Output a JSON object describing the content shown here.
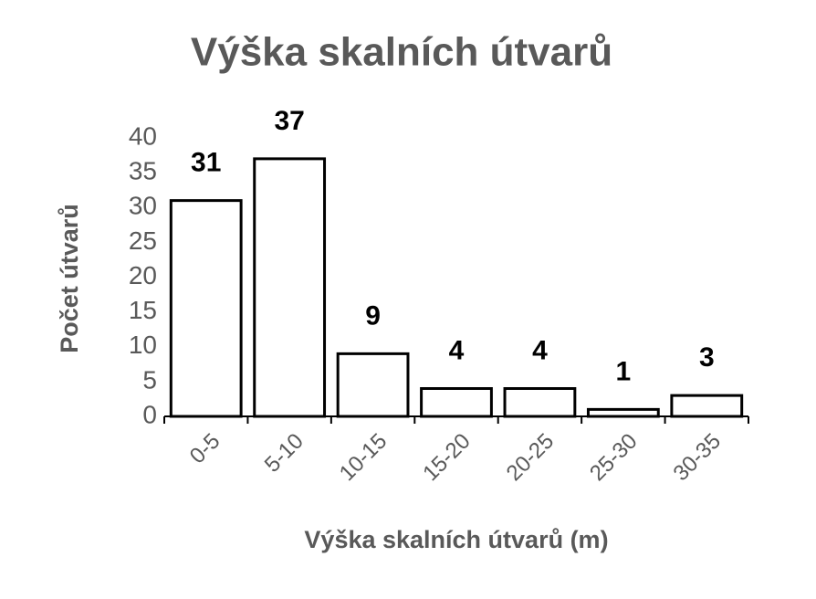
{
  "chart_data": {
    "type": "bar",
    "title": "Výška skalních útvarů",
    "x_label": "Výška skalních útvarů (m)",
    "y_label": "Počet útvarů",
    "categories": [
      "0-5",
      "5-10",
      "10-15",
      "15-20",
      "20-25",
      "25-30",
      "30-35"
    ],
    "values": [
      31,
      37,
      9,
      4,
      4,
      1,
      3
    ],
    "color": "#ffffff",
    "ylim": [
      0,
      40
    ],
    "yticks": [
      0,
      5,
      10,
      15,
      20,
      25,
      30,
      35,
      40
    ],
    "grid": false
  }
}
